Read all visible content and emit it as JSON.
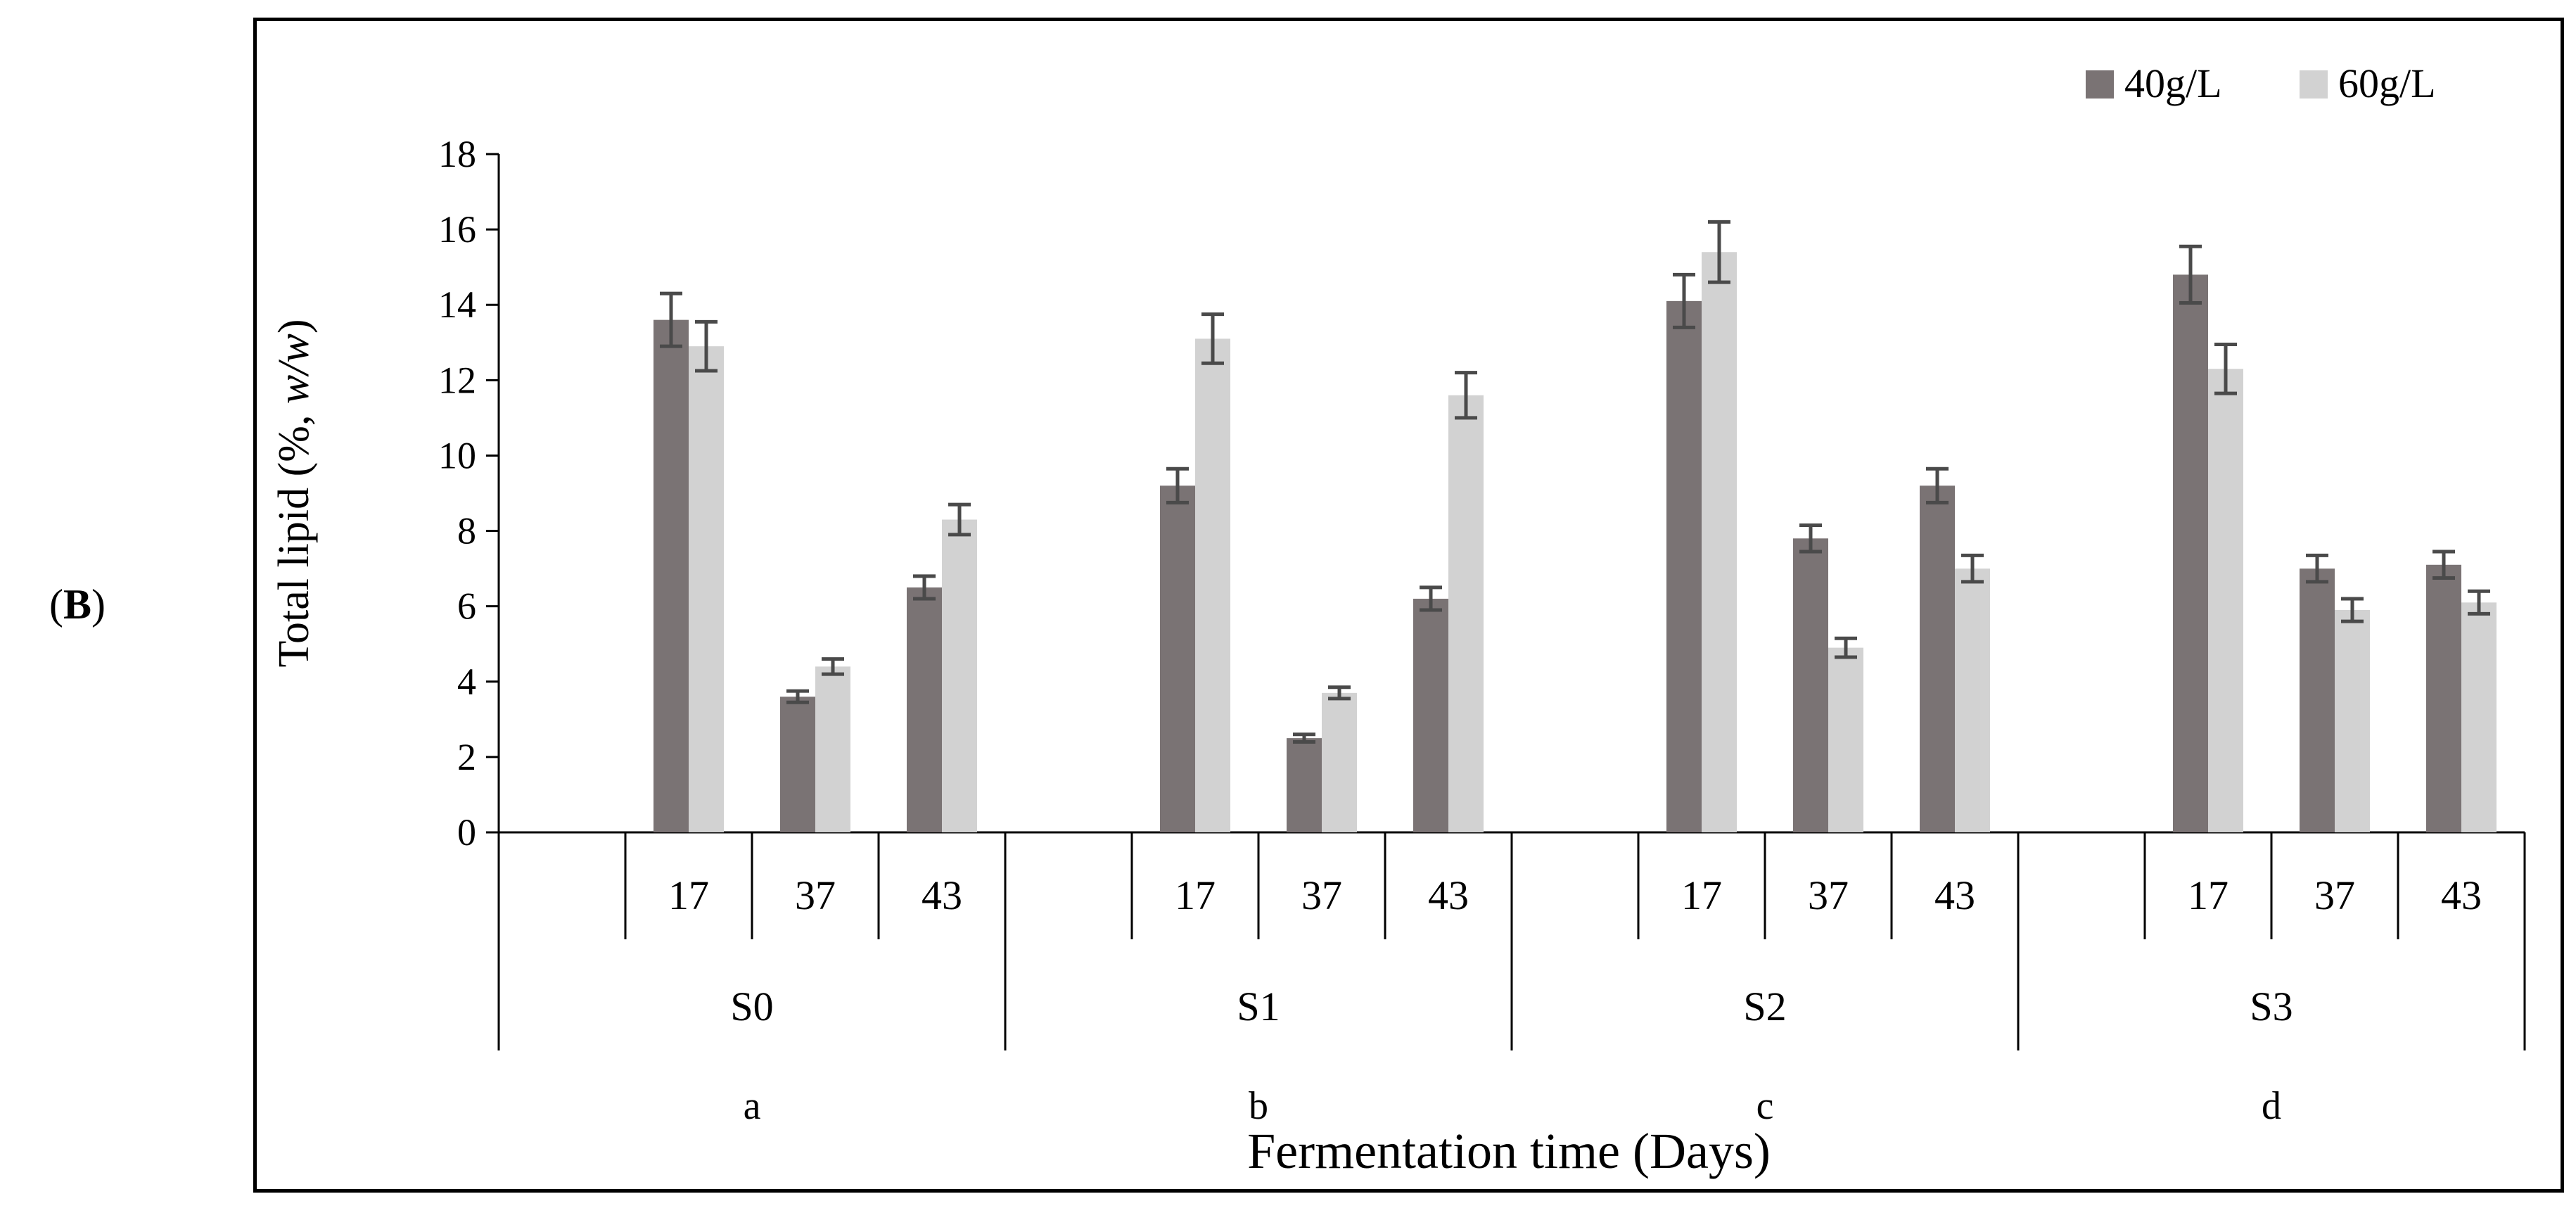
{
  "panel_label": "B",
  "chart_data": {
    "type": "bar",
    "title": "",
    "ylabel": "Total lipid (%, w/w)",
    "xlabel": "Fermentation time (Days)",
    "ylim": [
      0,
      18
    ],
    "yticks": [
      0,
      2,
      4,
      6,
      8,
      10,
      12,
      14,
      16,
      18
    ],
    "grid": false,
    "legend_position": "top-right",
    "groups": [
      {
        "label": "S0",
        "letter": "a"
      },
      {
        "label": "S1",
        "letter": "b"
      },
      {
        "label": "S2",
        "letter": "c"
      },
      {
        "label": "S3",
        "letter": "d"
      }
    ],
    "days": [
      "17",
      "37",
      "43"
    ],
    "series": [
      {
        "name": "40g/L",
        "color": "#7a7374",
        "values": [
          13.6,
          3.6,
          6.5,
          9.2,
          2.5,
          6.2,
          14.1,
          7.8,
          9.2,
          14.8,
          7.0,
          7.1
        ],
        "errors": [
          0.7,
          0.15,
          0.3,
          0.45,
          0.1,
          0.3,
          0.7,
          0.35,
          0.45,
          0.75,
          0.35,
          0.35
        ]
      },
      {
        "name": "60g/L",
        "color": "#d2d2d2",
        "values": [
          12.9,
          4.4,
          8.3,
          13.1,
          3.7,
          11.6,
          15.4,
          4.9,
          7.0,
          12.3,
          5.9,
          6.1
        ],
        "errors": [
          0.65,
          0.2,
          0.4,
          0.65,
          0.15,
          0.6,
          0.8,
          0.25,
          0.35,
          0.65,
          0.3,
          0.3
        ]
      }
    ]
  }
}
